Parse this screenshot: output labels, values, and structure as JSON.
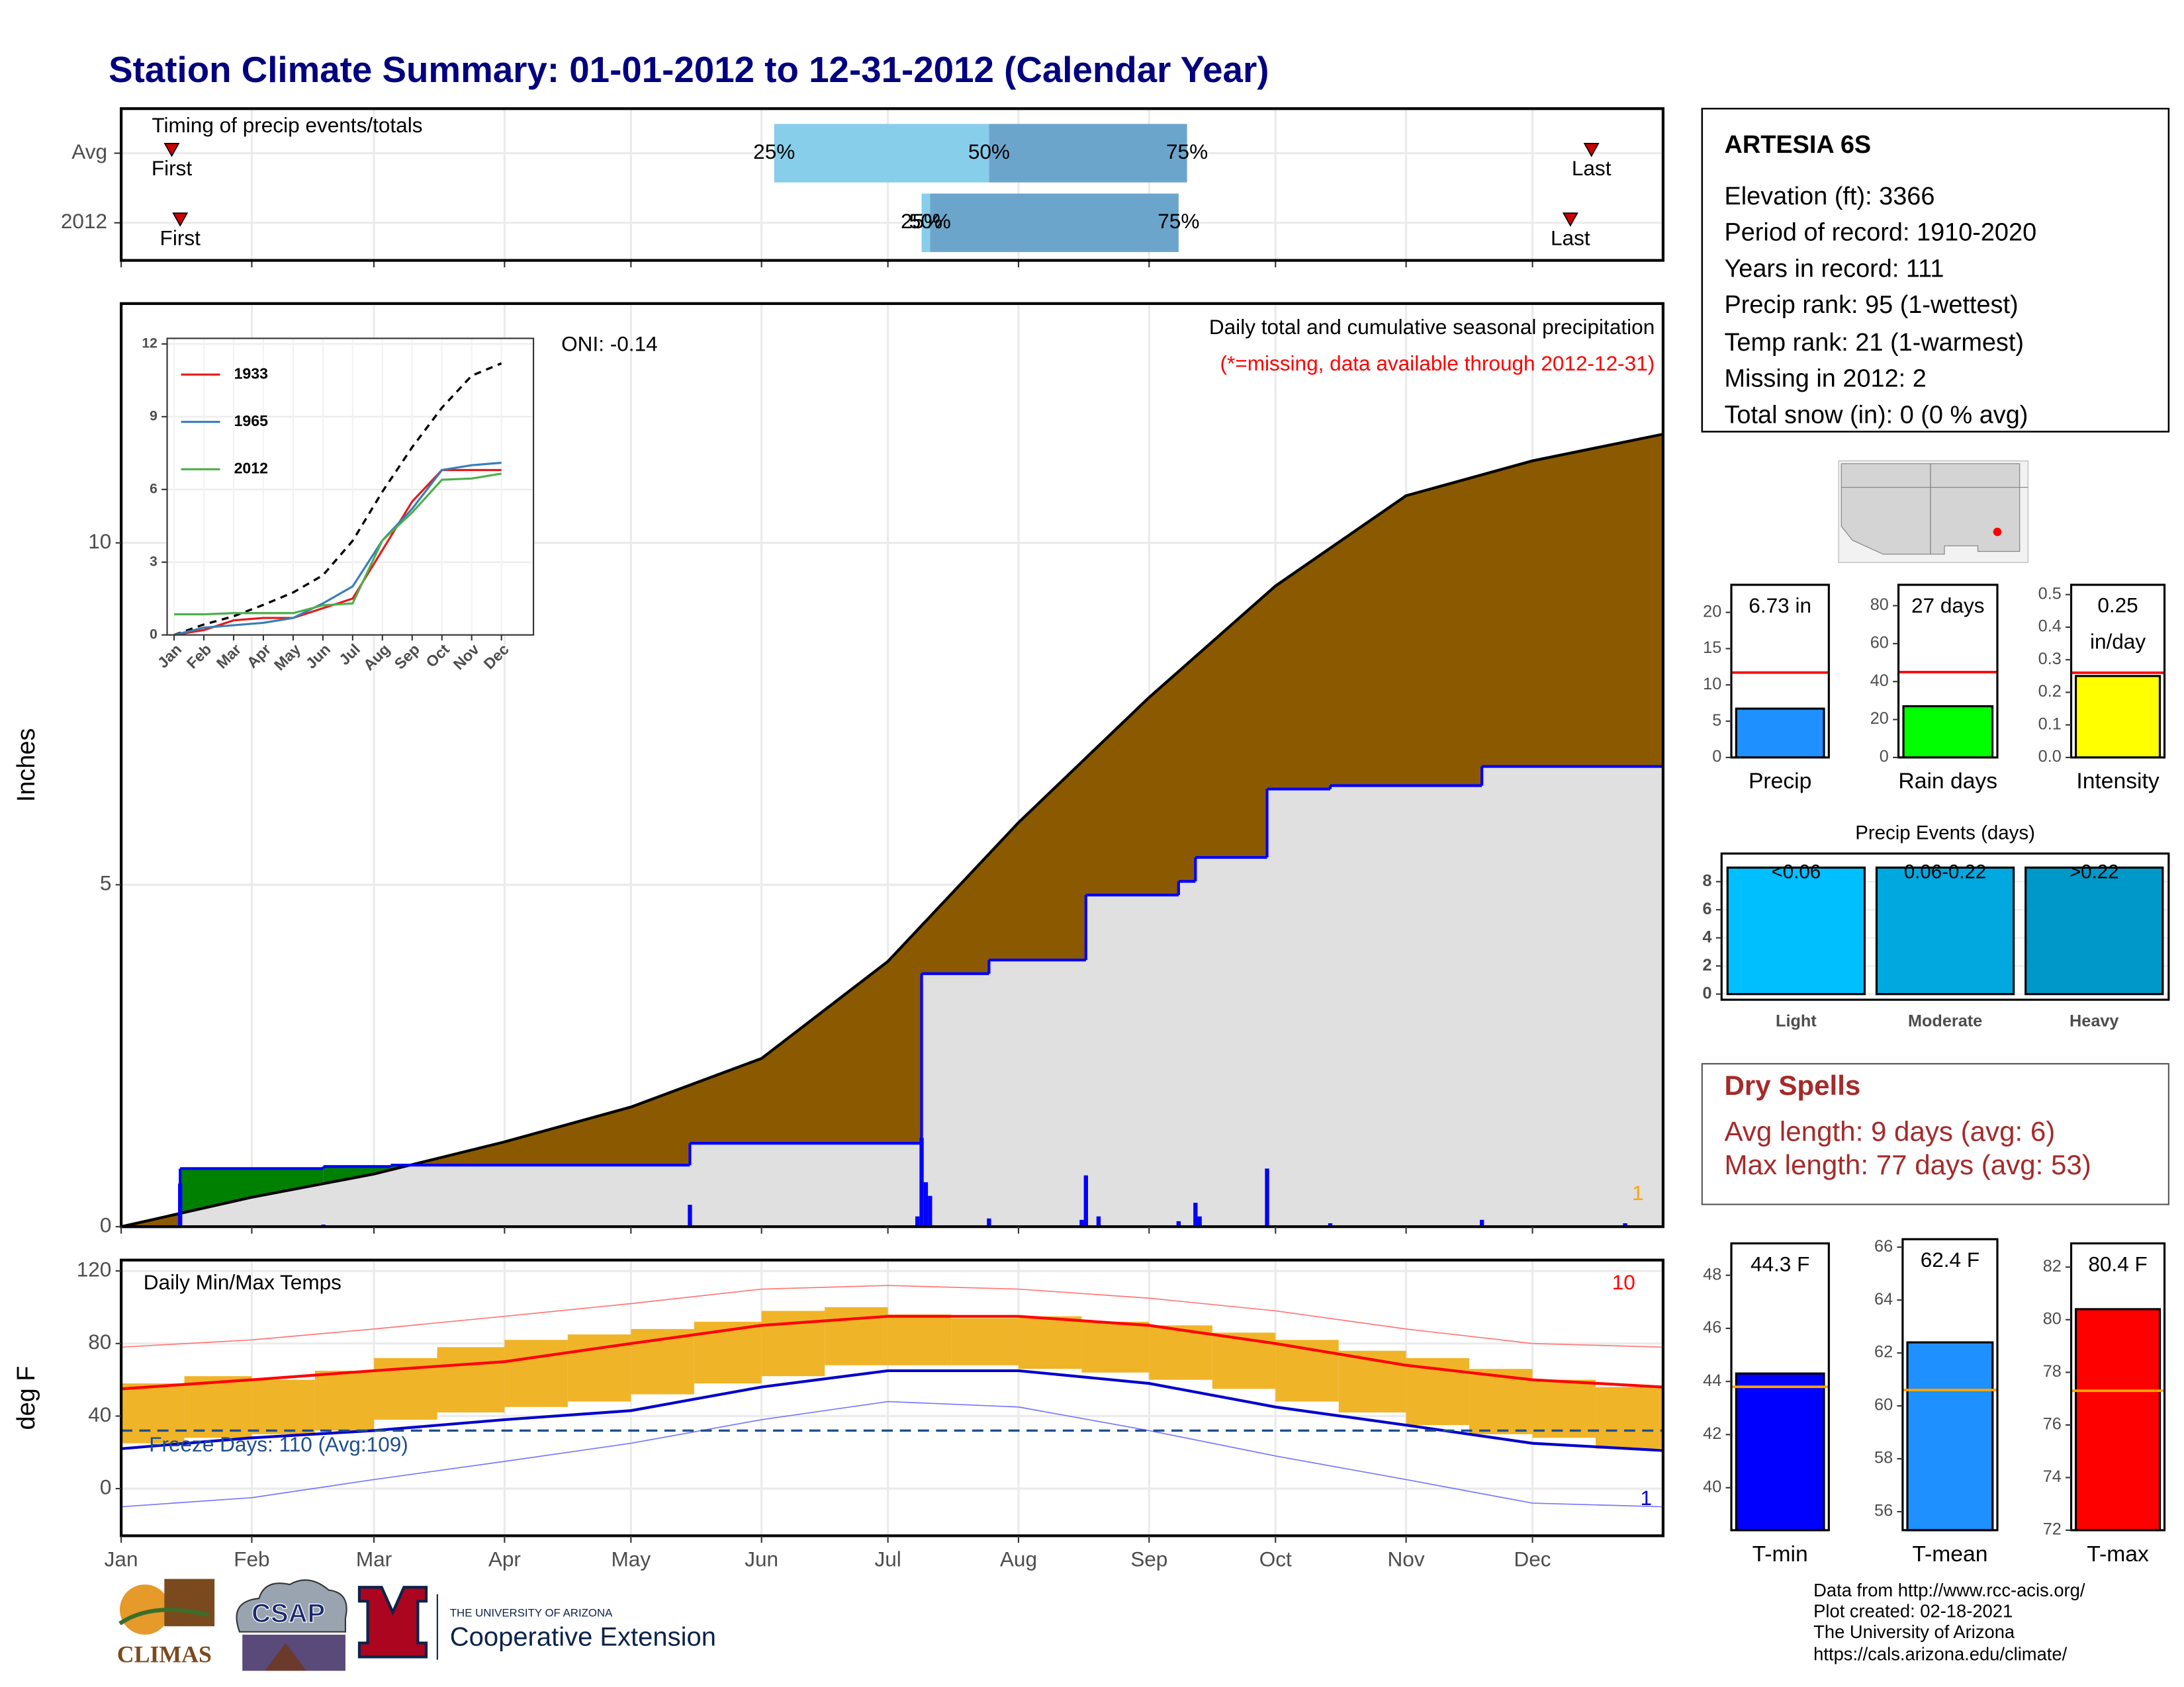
{
  "header": {
    "title": "Station Climate Summary: 01-01-2012 to 12-31-2012 (Calendar Year)"
  },
  "station": {
    "name": "ARTESIA 6S",
    "lines": [
      "Elevation (ft): 3366",
      "Period of record: 1910-2020",
      "Years in record: 111",
      "Precip rank: 95 (1-wettest)",
      "Temp rank: 21 (1-warmest)",
      "Missing in 2012: 2",
      "Total snow (in): 0 (0 % avg)"
    ]
  },
  "dry_spells": {
    "title": "Dry Spells",
    "lines": [
      "Avg length: 9 days (avg: 6)",
      "Max length: 77 days (avg: 53)"
    ]
  },
  "footer": {
    "lines": [
      "Data from http://www.rcc-acis.org/",
      "Plot created: 02-18-2021",
      "The University of Arizona",
      "https://cals.arizona.edu/climate/"
    ]
  },
  "logos": {
    "climas": "CLIMAS",
    "csap": "CSAP",
    "university": "THE UNIVERSITY OF ARIZONA",
    "extension": "Cooperative Extension"
  },
  "chart_data": [
    {
      "type": "timing",
      "title": "Timing of precip events/totals",
      "categories": [
        "Avg",
        "2012"
      ],
      "xlim": [
        1,
        367
      ],
      "xticks": [
        1,
        32,
        61,
        92,
        122,
        153,
        183,
        214,
        245,
        275,
        306,
        336
      ],
      "first": [
        13,
        15
      ],
      "last": [
        350,
        345
      ],
      "q25": [
        156,
        191
      ],
      "q50": [
        207,
        193
      ],
      "q75": [
        254,
        252
      ],
      "quantile_labels": [
        "25%",
        "50%",
        "75%"
      ],
      "marker_labels": {
        "first": "First",
        "last": "Last"
      },
      "colors": [
        "#87ceeb",
        "#6ca5cc"
      ],
      "marker_color": "#cc0000"
    },
    {
      "type": "cumulative",
      "title": "Daily total and cumulative seasonal precipitation",
      "subtitle": "(*=missing, data available through 2012-12-31)",
      "annotation": "ONI: -0.14",
      "corner_note": 1,
      "y_label": "Inches",
      "xlim": [
        1,
        367
      ],
      "xticks": [
        1,
        32,
        61,
        92,
        122,
        153,
        183,
        214,
        245,
        275,
        306,
        336
      ],
      "ylim": [
        0,
        13.5
      ],
      "yticks": [
        0,
        5,
        10
      ],
      "grid": true,
      "average": {
        "x": [
          1,
          32,
          61,
          92,
          122,
          153,
          183,
          214,
          245,
          275,
          306,
          336,
          367
        ],
        "values": [
          0,
          0.43,
          0.77,
          1.24,
          1.75,
          2.46,
          3.88,
          5.91,
          7.74,
          9.37,
          10.69,
          11.2,
          11.59
        ],
        "color": "#8b5a00",
        "line_color": "#000000"
      },
      "year": {
        "x": [
          1,
          15,
          49,
          65,
          136,
          191,
          207,
          230,
          252,
          256,
          273,
          288,
          324
        ],
        "values": [
          0,
          0.85,
          0.88,
          0.9,
          1.22,
          3.7,
          3.9,
          4.85,
          5.05,
          5.4,
          6.4,
          6.45,
          6.73
        ],
        "color": "#0000ff",
        "fill": "#e0e0e0",
        "above_color": "#008000"
      },
      "daily": {
        "x": [
          15,
          49,
          136,
          190,
          191,
          192,
          193,
          207,
          229,
          230,
          233,
          252,
          256,
          257,
          273,
          288,
          324,
          358
        ],
        "values": [
          0.63,
          0.03,
          0.32,
          0.15,
          1.3,
          0.65,
          0.45,
          0.12,
          0.1,
          0.75,
          0.15,
          0.08,
          0.35,
          0.15,
          0.85,
          0.05,
          0.1,
          0.05
        ],
        "color": "#0000ff"
      }
    },
    {
      "type": "line",
      "categories": [
        "Jan",
        "Feb",
        "Mar",
        "Apr",
        "May",
        "Jun",
        "Jul",
        "Aug",
        "Sep",
        "Oct",
        "Nov",
        "Dec"
      ],
      "ylim": [
        0,
        12.23
      ],
      "yticks": [
        0,
        3,
        6,
        9,
        12
      ],
      "legend": "upper-left",
      "series": [
        {
          "color": "#000000",
          "dash": true,
          "values": [
            0,
            0.43,
            0.77,
            1.24,
            1.75,
            2.46,
            3.88,
            5.91,
            7.74,
            9.37,
            10.69,
            11.2
          ]
        },
        {
          "name": "1933",
          "color": "#e41a1c",
          "values": [
            0,
            0.2,
            0.6,
            0.7,
            0.7,
            1.1,
            1.5,
            3.5,
            5.5,
            6.8,
            6.8,
            6.8
          ]
        },
        {
          "name": "1965",
          "color": "#377eb8",
          "values": [
            0,
            0.3,
            0.4,
            0.5,
            0.7,
            1.3,
            2.0,
            3.9,
            5.2,
            6.8,
            7.0,
            7.1
          ]
        },
        {
          "name": "2012",
          "color": "#4daf4a",
          "values": [
            0.85,
            0.85,
            0.9,
            0.9,
            0.9,
            1.22,
            1.3,
            3.9,
            5.05,
            6.4,
            6.45,
            6.65
          ]
        }
      ]
    },
    {
      "type": "temperature",
      "title": "Daily Min/Max Temps",
      "annotation": "Freeze Days: 110 (Avg:109)",
      "record_high_days": 10,
      "record_low_days": 1,
      "y_label": "deg F",
      "xlim": [
        1,
        367
      ],
      "xticks": [
        {
          "value": 1,
          "label": "Jan"
        },
        {
          "value": 32,
          "label": "Feb"
        },
        {
          "value": 61,
          "label": "Mar"
        },
        {
          "value": 92,
          "label": "Apr"
        },
        {
          "value": 122,
          "label": "May"
        },
        {
          "value": 153,
          "label": "Jun"
        },
        {
          "value": 183,
          "label": "Jul"
        },
        {
          "value": 214,
          "label": "Aug"
        },
        {
          "value": 245,
          "label": "Sep"
        },
        {
          "value": 275,
          "label": "Oct"
        },
        {
          "value": 306,
          "label": "Nov"
        },
        {
          "value": 336,
          "label": "Dec"
        }
      ],
      "ylim": [
        -26,
        126
      ],
      "yticks": [
        0,
        40,
        80,
        120
      ],
      "freeze_line": 32,
      "x": [
        1,
        32,
        61,
        92,
        122,
        153,
        183,
        214,
        245,
        275,
        306,
        336,
        367
      ],
      "avg_max": [
        55,
        60,
        65,
        70,
        80,
        90,
        95,
        95,
        90,
        80,
        68,
        60,
        56
      ],
      "avg_min": [
        22,
        28,
        32,
        38,
        43,
        56,
        65,
        65,
        58,
        45,
        35,
        25,
        21
      ],
      "record_max": [
        78,
        82,
        88,
        95,
        102,
        110,
        112,
        110,
        105,
        98,
        88,
        80,
        78
      ],
      "record_min": [
        -10,
        -5,
        5,
        15,
        25,
        38,
        48,
        45,
        32,
        18,
        5,
        -8,
        -10
      ],
      "bins": [
        1,
        16,
        32,
        47,
        61,
        76,
        92,
        107,
        122,
        137,
        153,
        168,
        183,
        198,
        214,
        229,
        245,
        260,
        275,
        290,
        306,
        321,
        336,
        351,
        367
      ],
      "lows": [
        25,
        28,
        30,
        32,
        38,
        42,
        45,
        48,
        52,
        58,
        62,
        68,
        68,
        68,
        66,
        64,
        60,
        55,
        48,
        42,
        35,
        30,
        28,
        22
      ],
      "highs": [
        58,
        62,
        60,
        65,
        72,
        78,
        82,
        85,
        88,
        92,
        98,
        100,
        96,
        94,
        95,
        92,
        90,
        86,
        82,
        76,
        72,
        66,
        60,
        56
      ],
      "colors": {
        "range": "#f0b428",
        "avg_max": "#ff0000",
        "avg_min": "#0000cc",
        "record_max": "#ff7777",
        "record_min": "#7777ff",
        "freeze": "#1f4e8c"
      }
    },
    {
      "type": "bar",
      "categories": [
        "Precip"
      ],
      "values": [
        6.73
      ],
      "value_labels": [
        "6.73 in"
      ],
      "avg": 11.7,
      "avg_color": "#ff0000",
      "ylim": [
        0,
        23.8
      ],
      "yticks": [
        0,
        5,
        10,
        15,
        20
      ],
      "color": "#1e90ff"
    },
    {
      "type": "bar",
      "categories": [
        "Rain days"
      ],
      "values": [
        27
      ],
      "value_labels": [
        "27 days"
      ],
      "avg": 45,
      "avg_color": "#ff0000",
      "ylim": [
        0,
        91
      ],
      "yticks": [
        0,
        20,
        40,
        60,
        80
      ],
      "color": "#00ff00"
    },
    {
      "type": "bar",
      "categories": [
        "Intensity"
      ],
      "values": [
        0.25
      ],
      "value_labels": [
        "0.25 in/day"
      ],
      "avg": 0.26,
      "avg_color": "#ff0000",
      "ylim": [
        0,
        0.53
      ],
      "yticks": [
        {
          "value": 0,
          "label": "0.0"
        },
        0.1,
        0.2,
        0.3,
        0.4,
        0.5
      ],
      "color": "#ffff00"
    },
    {
      "type": "bar",
      "title": "Precip Events (days)",
      "categories": [
        "Light",
        "Moderate",
        "Heavy"
      ],
      "values": [
        9,
        9,
        9
      ],
      "bin_labels": [
        "<0.06",
        "0.06-0.22",
        ">0.22"
      ],
      "ylim": [
        -0.4,
        10
      ],
      "yticks": [
        0,
        2,
        4,
        6,
        8
      ],
      "grid": true,
      "colors": [
        "#00bfff",
        "#00a8e0",
        "#0098c8"
      ]
    },
    {
      "type": "bar",
      "categories": [
        "T-min"
      ],
      "values": [
        44.3
      ],
      "value_labels": [
        "44.3 F"
      ],
      "avg": 43.8,
      "avg_color": "#ffa500",
      "ylim": [
        38.4,
        49.2
      ],
      "yticks": [
        40,
        42,
        44,
        46,
        48
      ],
      "color": "#0000ff"
    },
    {
      "type": "bar",
      "categories": [
        "T-mean"
      ],
      "values": [
        62.4
      ],
      "value_labels": [
        "62.4 F"
      ],
      "avg": 60.6,
      "avg_color": "#ffa500",
      "ylim": [
        55.3,
        66.3
      ],
      "yticks": [
        56,
        58,
        60,
        62,
        64,
        66
      ],
      "color": "#1e90ff"
    },
    {
      "type": "bar",
      "categories": [
        "T-max"
      ],
      "values": [
        80.4
      ],
      "value_labels": [
        "80.4 F"
      ],
      "avg": 77.3,
      "avg_color": "#ffa500",
      "ylim": [
        72,
        82.9
      ],
      "yticks": [
        72,
        74,
        76,
        78,
        80,
        82
      ],
      "color": "#ff0000"
    }
  ]
}
